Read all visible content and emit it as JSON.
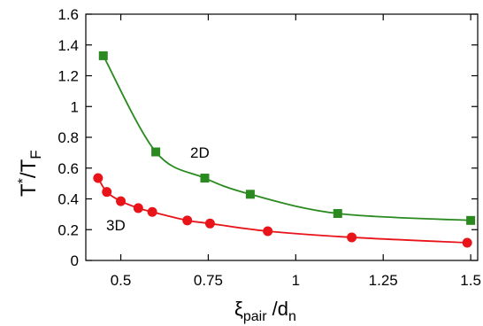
{
  "chart_data": {
    "type": "scatter",
    "x_range": [
      0.4,
      1.52
    ],
    "y_range": [
      0,
      1.6
    ],
    "x_ticks": [
      "0.5",
      "0.75",
      "1",
      "1.25",
      "1.5"
    ],
    "x_tick_values": [
      0.5,
      0.75,
      1.0,
      1.25,
      1.5
    ],
    "y_ticks": [
      "0",
      "0.2",
      "0.4",
      "0.6",
      "0.8",
      "1",
      "1.2",
      "1.4",
      "1.6"
    ],
    "y_tick_values": [
      0,
      0.2,
      0.4,
      0.6,
      0.8,
      1.0,
      1.2,
      1.4,
      1.6
    ],
    "xlabel": {
      "main": "ξ",
      "sub1": "pair",
      "mid": " /d",
      "sub2": "n"
    },
    "ylabel": {
      "main": "T",
      "sup": "*",
      "mid": "/T",
      "sub": "F"
    },
    "grid": false,
    "series": [
      {
        "name": "2D",
        "color": "#2a8a1f",
        "marker": "square",
        "x": [
          0.45,
          0.6,
          0.74,
          0.87,
          1.12,
          1.5
        ],
        "y": [
          1.33,
          0.705,
          0.535,
          0.43,
          0.305,
          0.26
        ],
        "curve": "fit"
      },
      {
        "name": "3D",
        "color": "#e8141a",
        "marker": "circle",
        "x": [
          0.435,
          0.46,
          0.5,
          0.55,
          0.59,
          0.69,
          0.755,
          0.92,
          1.16,
          1.49
        ],
        "y": [
          0.535,
          0.445,
          0.385,
          0.34,
          0.315,
          0.26,
          0.24,
          0.19,
          0.15,
          0.115
        ],
        "curve": "fit"
      }
    ]
  }
}
